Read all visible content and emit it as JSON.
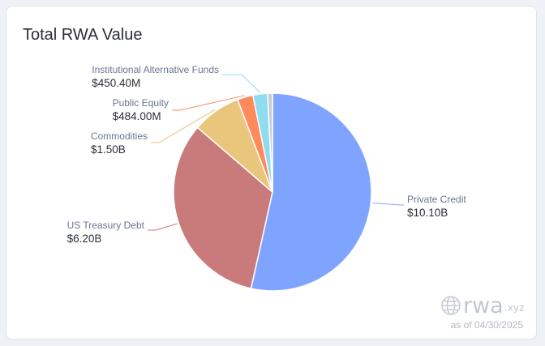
{
  "title": "Total RWA Value",
  "chart_data": {
    "type": "pie",
    "title": "Total RWA Value",
    "slices": [
      {
        "name": "Private Credit",
        "value": 10.1,
        "label": "$10.10B",
        "color": "#7ea4ff"
      },
      {
        "name": "US Treasury Debt",
        "value": 6.2,
        "label": "$6.20B",
        "color": "#c97b7b"
      },
      {
        "name": "Commodities",
        "value": 1.5,
        "label": "$1.50B",
        "color": "#e9c67b"
      },
      {
        "name": "Public Equity",
        "value": 0.484,
        "label": "$484.00M",
        "color": "#ff8a5c"
      },
      {
        "name": "Institutional Alternative Funds",
        "value": 0.4504,
        "label": "$450.40M",
        "color": "#8fdcef"
      },
      {
        "name": "",
        "value": 0.15,
        "label": "",
        "color": "#c9ccd3"
      }
    ]
  },
  "watermark": {
    "brand": "rwa",
    "suffix": ".xyz",
    "as_of": "as of 04/30/2025"
  }
}
